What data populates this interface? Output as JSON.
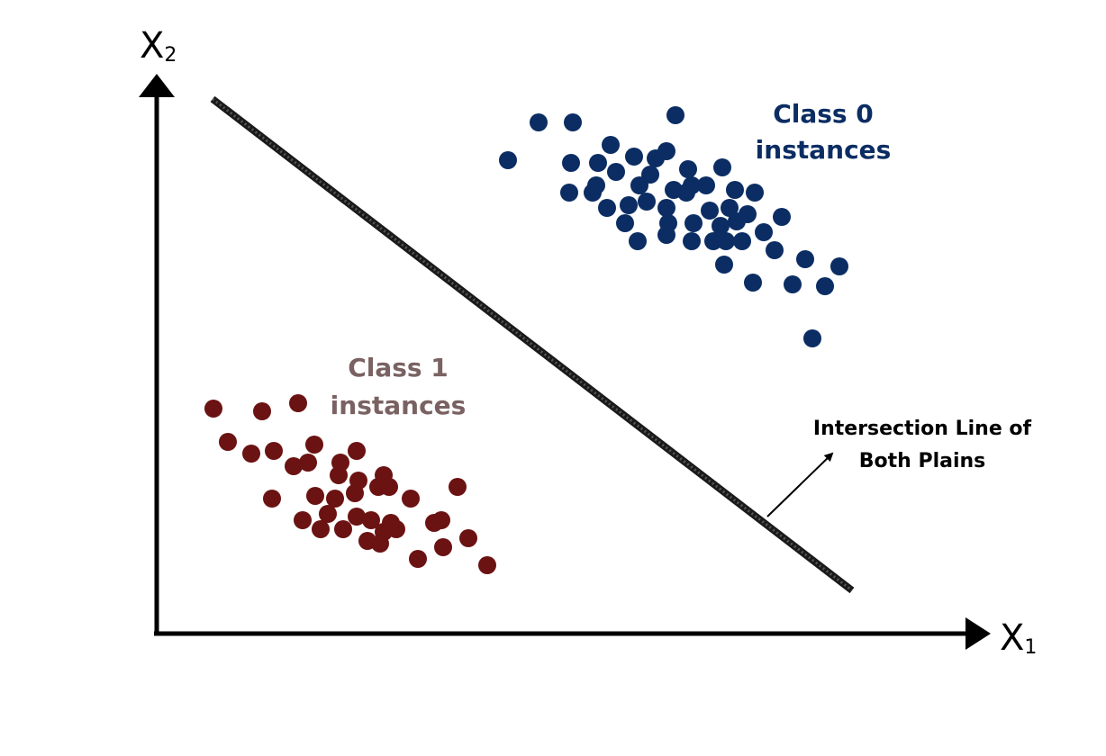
{
  "axes": {
    "x_label": "X",
    "x_subscript": "1",
    "y_label": "X",
    "y_subscript": "2"
  },
  "class0": {
    "label_line1": "Class 0",
    "label_line2": "instances",
    "color": "#0b2d63"
  },
  "class1": {
    "label_line1": "Class 1",
    "label_line2": "instances",
    "color": "#6b1212",
    "label_color": "#7a6262"
  },
  "annotation": {
    "line1": "Intersection Line of",
    "line2": "Both Plains"
  },
  "colors": {
    "axis": "#000000",
    "boundary": "#1a1a1a"
  }
}
